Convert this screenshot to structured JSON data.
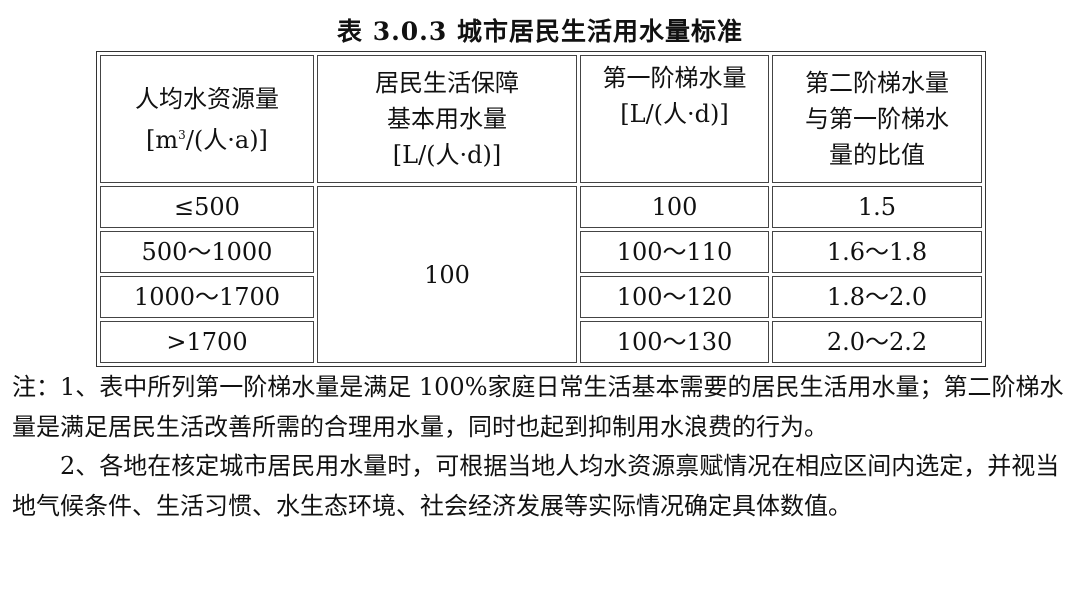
{
  "title": "表 3.0.3 城市居民生活用水量标准",
  "table": {
    "headers": [
      {
        "line1": "人均水资源量",
        "line2": "[m",
        "sup": "3",
        "line2b": "/(人·a)]"
      },
      {
        "line1": "居民生活保障",
        "line2": "基本用水量",
        "line3": "[L/(人·d)]"
      },
      {
        "line1": "第一阶梯水量",
        "line2": "[L/(人·d)]"
      },
      {
        "line1": "第二阶梯水量",
        "line2": "与第一阶梯水",
        "line3": "量的比值"
      }
    ],
    "basic_amount": "100",
    "rows": [
      {
        "resource": "≤500",
        "tier1": "100",
        "ratio": "1.5"
      },
      {
        "resource": "500～1000",
        "tier1": "100～110",
        "ratio": "1.6～1.8"
      },
      {
        "resource": "1000～1700",
        "tier1": "100～120",
        "ratio": "1.8～2.0"
      },
      {
        "resource": ">1700",
        "tier1": "100～130",
        "ratio": "2.0～2.2"
      }
    ]
  },
  "notes": [
    "注：1、表中所列第一阶梯水量是满足 100%家庭日常生活基本需要的居民生活用水量；第二阶梯水量是满足居民生活改善所需的合理用水量，同时也起到抑制用水浪费的行为。",
    "2、各地在核定城市居民用水量时，可根据当地人均水资源禀赋情况在相应区间内选定，并视当地气候条件、生活习惯、水生态环境、社会经济发展等实际情况确定具体数值。"
  ]
}
